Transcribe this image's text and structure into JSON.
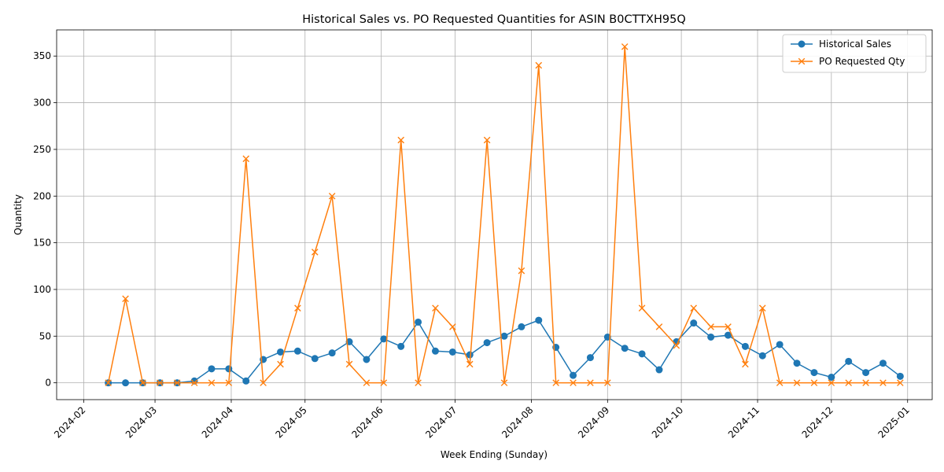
{
  "chart_data": {
    "type": "line",
    "title": "Historical Sales vs. PO Requested Quantities for ASIN B0CTTXH95Q",
    "xlabel": "Week Ending (Sunday)",
    "ylabel": "Quantity",
    "x_ticks": [
      "2024-02",
      "2024-03",
      "2024-04",
      "2024-05",
      "2024-06",
      "2024-07",
      "2024-08",
      "2024-09",
      "2024-10",
      "2024-11",
      "2024-12",
      "2025-01"
    ],
    "y_ticks": [
      0,
      50,
      100,
      150,
      200,
      250,
      300,
      350
    ],
    "xlim": [
      "2024-01-21",
      "2025-01-11"
    ],
    "ylim": [
      -18,
      378
    ],
    "grid": true,
    "legend_position": "top-right",
    "x": [
      "2024-02-11",
      "2024-02-18",
      "2024-02-25",
      "2024-03-03",
      "2024-03-10",
      "2024-03-17",
      "2024-03-24",
      "2024-03-31",
      "2024-04-07",
      "2024-04-14",
      "2024-04-21",
      "2024-04-28",
      "2024-05-05",
      "2024-05-12",
      "2024-05-19",
      "2024-05-26",
      "2024-06-02",
      "2024-06-09",
      "2024-06-16",
      "2024-06-23",
      "2024-06-30",
      "2024-07-07",
      "2024-07-14",
      "2024-07-21",
      "2024-07-28",
      "2024-08-04",
      "2024-08-11",
      "2024-08-18",
      "2024-08-25",
      "2024-09-01",
      "2024-09-08",
      "2024-09-15",
      "2024-09-22",
      "2024-09-29",
      "2024-10-06",
      "2024-10-13",
      "2024-10-20",
      "2024-10-27",
      "2024-11-03",
      "2024-11-10",
      "2024-11-17",
      "2024-11-24",
      "2024-12-01",
      "2024-12-08",
      "2024-12-15",
      "2024-12-22",
      "2024-12-29"
    ],
    "series": [
      {
        "name": "Historical Sales",
        "color": "#1f77b4",
        "marker": "circle",
        "values": [
          0,
          0,
          0,
          0,
          0,
          2,
          15,
          15,
          2,
          25,
          33,
          34,
          26,
          32,
          44,
          25,
          47,
          39,
          65,
          34,
          33,
          30,
          43,
          50,
          60,
          67,
          38,
          8,
          27,
          49,
          37,
          31,
          14,
          44,
          64,
          49,
          51,
          39,
          29,
          41,
          21,
          11,
          6,
          23,
          11,
          21,
          7
        ]
      },
      {
        "name": "PO Requested Qty",
        "color": "#ff7f0e",
        "marker": "x",
        "values": [
          0,
          90,
          0,
          0,
          0,
          0,
          0,
          0,
          240,
          0,
          20,
          80,
          140,
          200,
          20,
          0,
          0,
          260,
          0,
          80,
          60,
          20,
          260,
          0,
          120,
          340,
          0,
          0,
          0,
          0,
          360,
          80,
          60,
          40,
          80,
          60,
          60,
          20,
          80,
          0,
          0,
          0,
          0,
          0,
          0,
          0,
          0
        ]
      }
    ]
  }
}
